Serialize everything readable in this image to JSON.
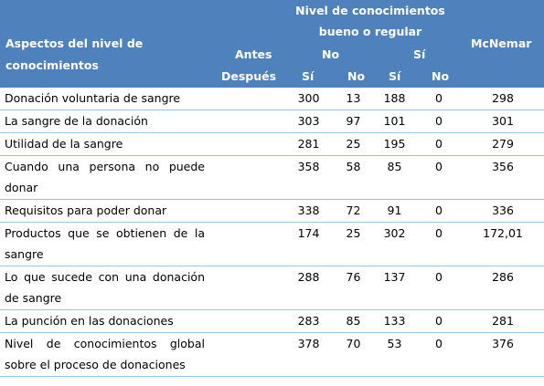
{
  "header": {
    "group": "Nivel de conocimientos bueno o regular",
    "aspect": "Aspectos del nivel de conocimientos",
    "mcnemar": "McNemar",
    "antes": "Antes",
    "despues": "Después",
    "antes_levels": [
      "No",
      "Sí"
    ],
    "despues_levels": [
      "Sí",
      "No",
      "Sí",
      "No"
    ]
  },
  "rows": [
    {
      "label": "Donación voluntaria de sangre",
      "values": [
        300,
        13,
        188,
        0
      ],
      "mcnemar": 298
    },
    {
      "label": "La sangre de la donación",
      "values": [
        303,
        97,
        101,
        0
      ],
      "mcnemar": 301
    },
    {
      "label": "Utilidad de la sangre",
      "values": [
        281,
        25,
        195,
        0
      ],
      "mcnemar": 279
    },
    {
      "label": "Cuando una persona no puede donar",
      "values": [
        358,
        58,
        85,
        0
      ],
      "mcnemar": 356
    },
    {
      "label": "Requisitos para poder donar",
      "values": [
        338,
        72,
        91,
        0
      ],
      "mcnemar": 336
    },
    {
      "label": "Productos que se obtienen de la sangre",
      "values": [
        174,
        25,
        302,
        0
      ],
      "mcnemar": {
        "value": 172.01,
        "label": "172,01"
      }
    },
    {
      "label": "Lo que sucede con una donación de sangre",
      "values": [
        288,
        76,
        137,
        0
      ],
      "mcnemar": 286
    },
    {
      "label": "La punción en las donaciones",
      "values": [
        283,
        85,
        133,
        0
      ],
      "mcnemar": 281
    },
    {
      "label": "Nivel de conocimientos global sobre el proceso de donaciones",
      "values": [
        378,
        70,
        53,
        0
      ],
      "mcnemar": 376
    }
  ]
}
